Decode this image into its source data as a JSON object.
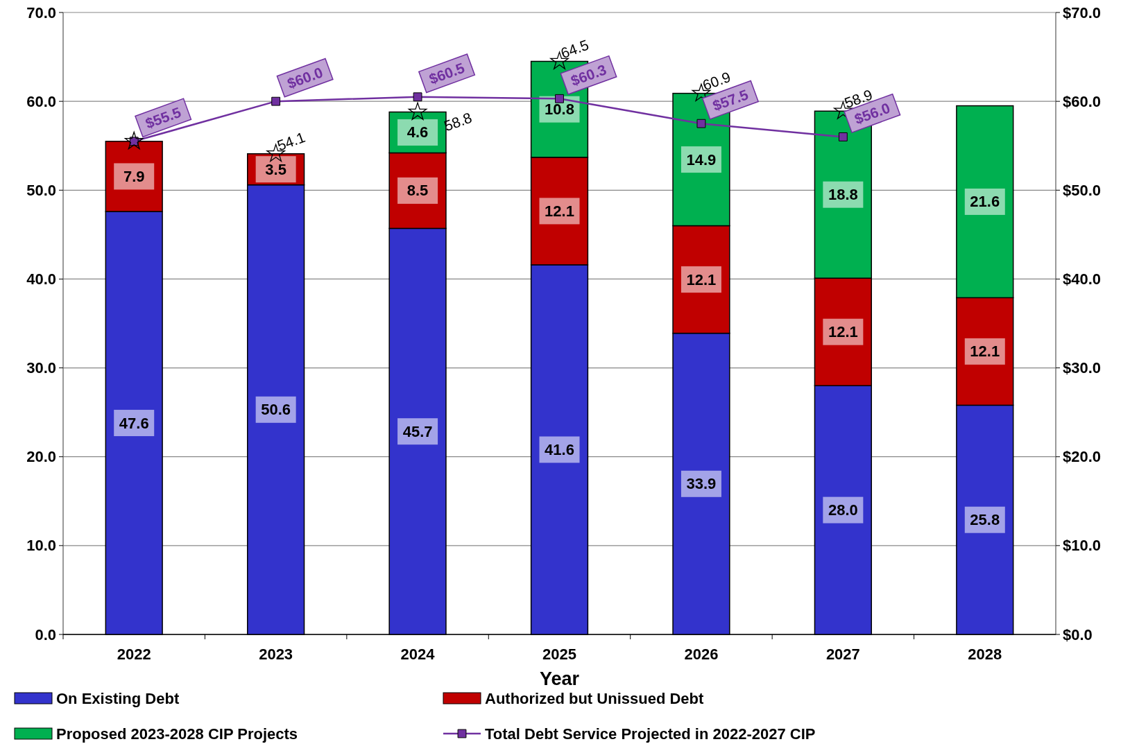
{
  "chart_data": {
    "type": "bar",
    "stacked": true,
    "xlabel": "Year",
    "categories": [
      "2022",
      "2023",
      "2024",
      "2025",
      "2026",
      "2027",
      "2028"
    ],
    "series": [
      {
        "name": "On Existing Debt",
        "color": "#3333cc",
        "values": [
          47.6,
          50.6,
          45.7,
          41.6,
          33.9,
          28.0,
          25.8
        ],
        "value_labels": [
          "47.6",
          "50.6",
          "45.7",
          "41.6",
          "33.9",
          "28.0",
          "25.8"
        ]
      },
      {
        "name": "Authorized but Unissued Debt",
        "color": "#c00000",
        "values": [
          7.9,
          3.5,
          8.5,
          12.1,
          12.1,
          12.1,
          12.1
        ],
        "value_labels": [
          "7.9",
          "3.5",
          "8.5",
          "12.1",
          "12.1",
          "12.1",
          "12.1"
        ]
      },
      {
        "name": "Proposed 2023-2028 CIP Projects",
        "color": "#00b050",
        "values": [
          null,
          null,
          4.6,
          10.8,
          14.9,
          18.8,
          21.6
        ],
        "value_labels": [
          null,
          null,
          "4.6",
          "10.8",
          "14.9",
          "18.8",
          "21.6"
        ]
      },
      {
        "name": "Total Debt Service Projected in 2022-2027 CIP",
        "type": "line",
        "axis": "y2",
        "color": "#7030a0",
        "marker": "square",
        "values": [
          55.5,
          60.0,
          60.5,
          60.3,
          57.5,
          56.0,
          null
        ],
        "value_labels": [
          "$55.5",
          "$60.0",
          "$60.5",
          "$60.3",
          "$57.5",
          "$56.0",
          null
        ]
      },
      {
        "type": "scatter",
        "color": "#000000",
        "marker": "star",
        "values": [
          55.5,
          54.1,
          58.8,
          64.5,
          60.9,
          58.9,
          null
        ],
        "value_labels": [
          null,
          "54.1",
          "58.8",
          "64.5",
          "60.9",
          "58.9",
          null
        ]
      }
    ],
    "grid": "y",
    "legend": "bottom",
    "ylim": [
      0,
      70
    ],
    "yticks": [
      {
        "value": 0,
        "label": "0.0"
      },
      {
        "value": 10,
        "label": "10.0"
      },
      {
        "value": 20,
        "label": "20.0"
      },
      {
        "value": 30,
        "label": "30.0"
      },
      {
        "value": 40,
        "label": "40.0"
      },
      {
        "value": 50,
        "label": "50.0"
      },
      {
        "value": 60,
        "label": "60.0"
      },
      {
        "value": 70,
        "label": "70.0"
      }
    ],
    "y2lim": [
      0,
      70
    ],
    "y2ticks": [
      {
        "value": 0,
        "label": "$0.0"
      },
      {
        "value": 10,
        "label": "$10.0"
      },
      {
        "value": 20,
        "label": "$20.0"
      },
      {
        "value": 30,
        "label": "$30.0"
      },
      {
        "value": 40,
        "label": "$40.0"
      },
      {
        "value": 50,
        "label": "$50.0"
      },
      {
        "value": 60,
        "label": "$60.0"
      },
      {
        "value": 70,
        "label": "$70.0"
      }
    ]
  }
}
